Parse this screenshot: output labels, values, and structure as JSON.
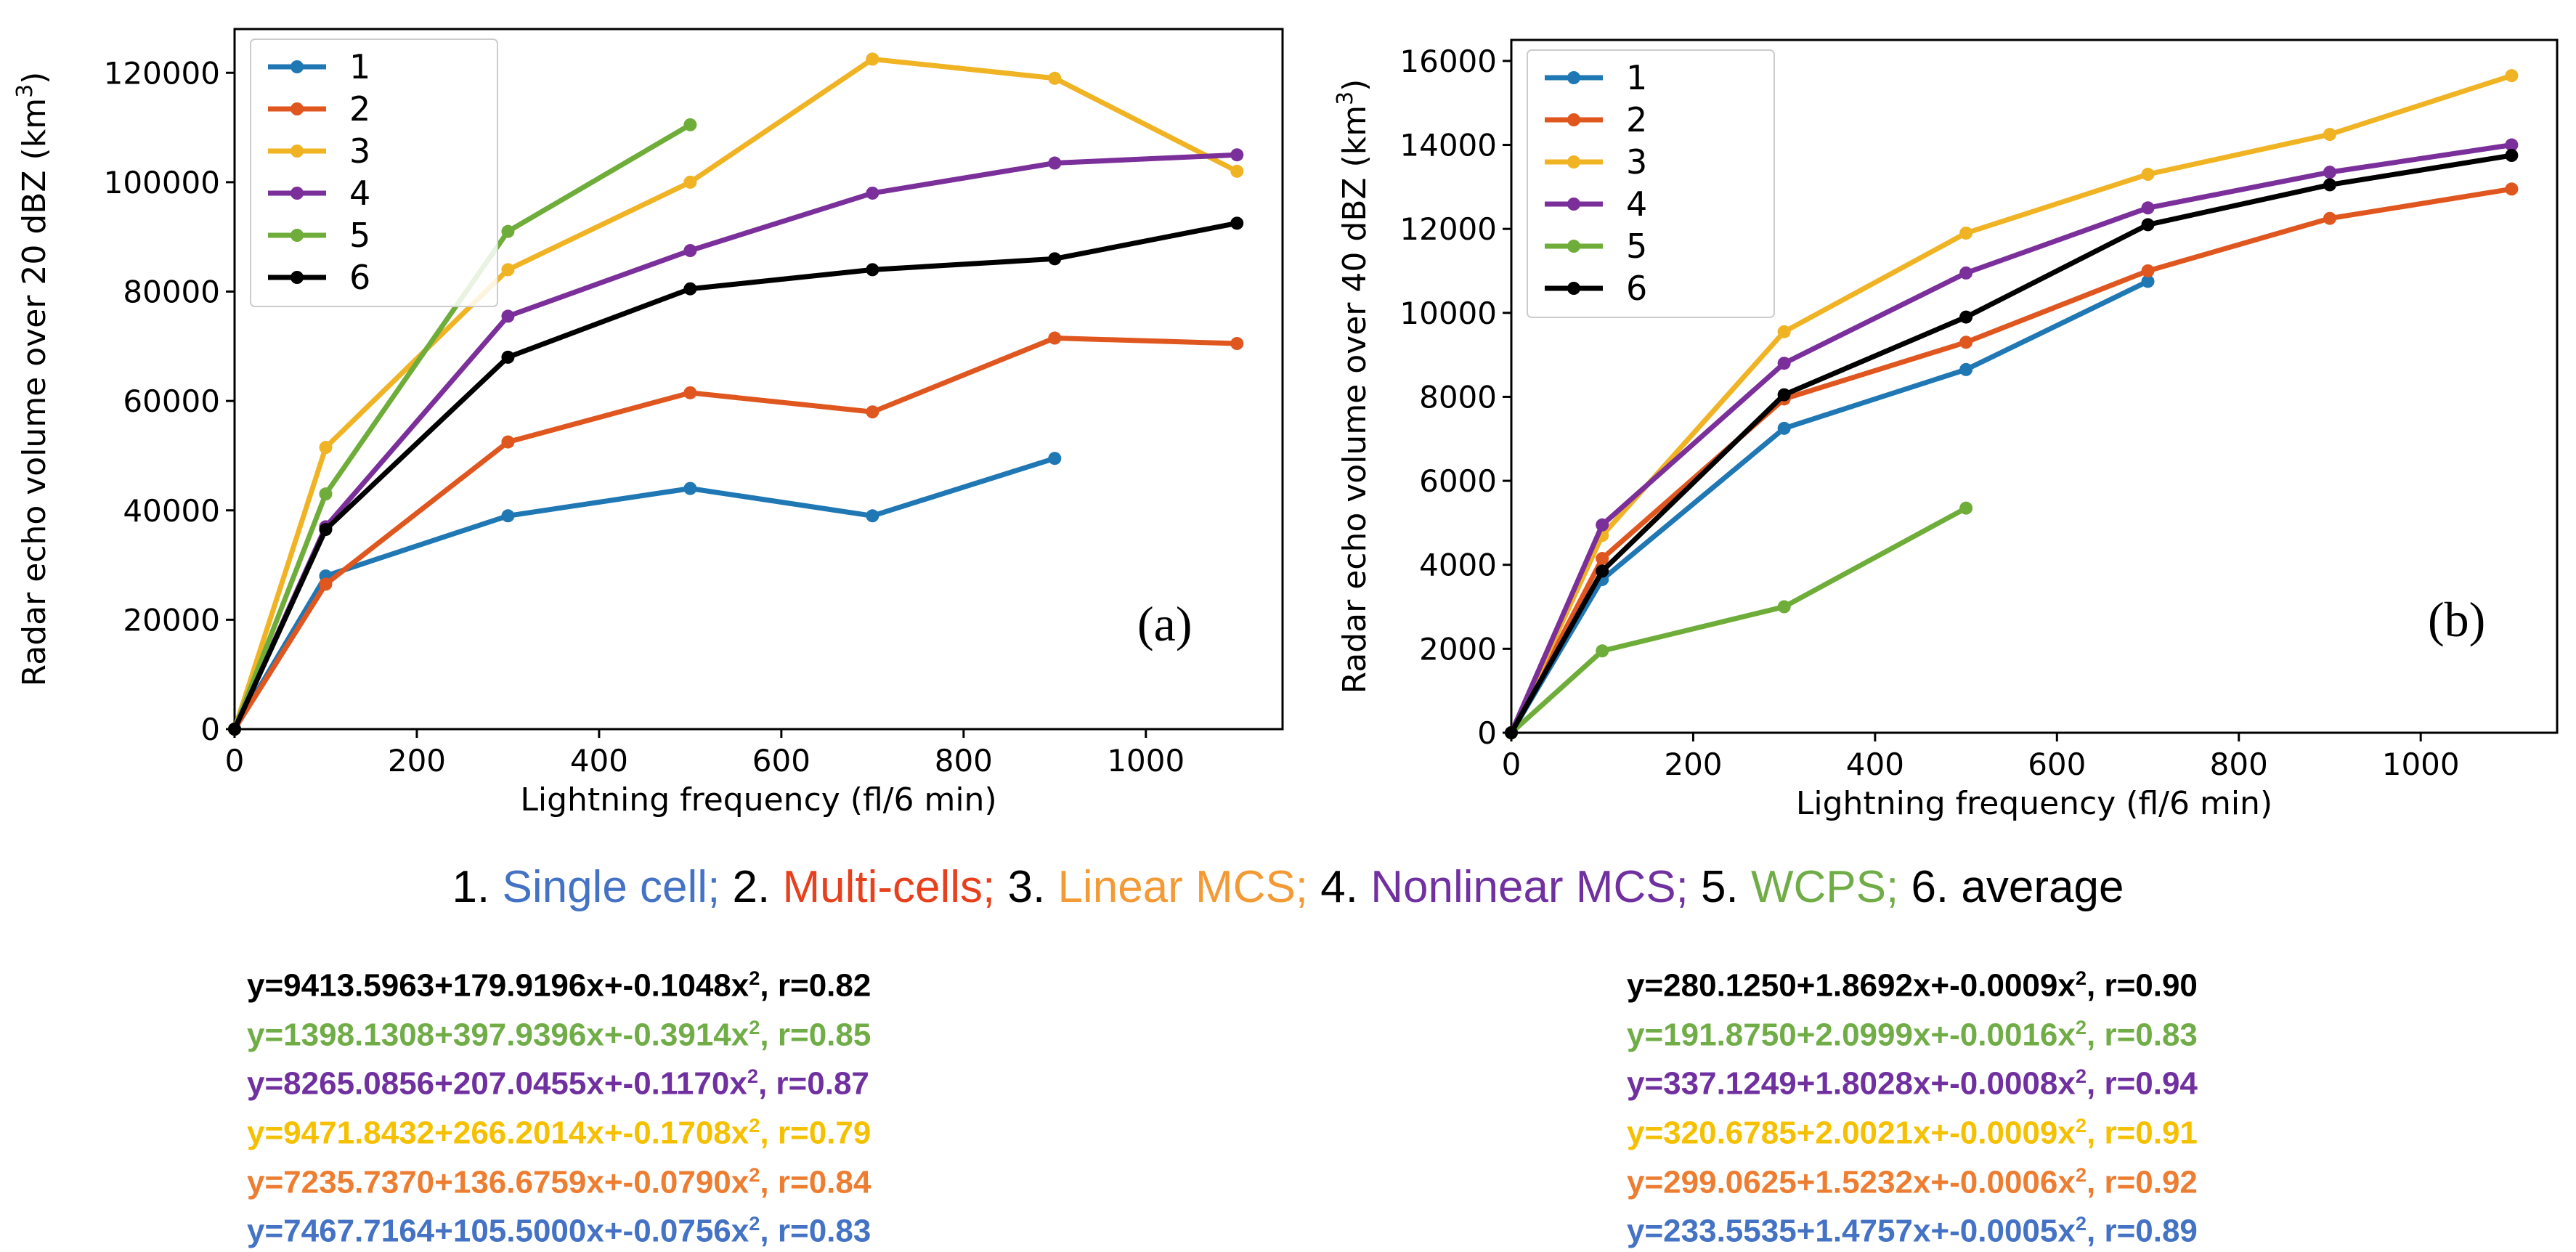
{
  "colors": {
    "1": "#1f77b4",
    "2": "#e0561f",
    "3": "#f0b323",
    "4": "#7b2f9a",
    "5": "#6fad3a",
    "6": "#000000",
    "cap1": "#4472c4",
    "cap2": "#e8401c",
    "cap3": "#f39a35",
    "cap4": "#7030a0",
    "cap5": "#70ad47",
    "cap6": "#000000"
  },
  "chart_data": [
    {
      "type": "line",
      "panel_label": "(a)",
      "xlabel": "Lightning frequency (fl/6 min)",
      "ylabel": "Radar echo volume over 20 dBZ (km",
      "ylabel_sup": "3",
      "ylabel_close": ")",
      "xlim": [
        0,
        1150
      ],
      "ylim": [
        0,
        128000
      ],
      "xticks": [
        0,
        200,
        400,
        600,
        800,
        1000
      ],
      "yticks": [
        0,
        20000,
        40000,
        60000,
        80000,
        100000,
        120000
      ],
      "legend_position": "top-left",
      "series": [
        {
          "name": "1",
          "color_key": "1",
          "x": [
            0,
            100,
            300,
            500,
            700,
            900
          ],
          "y": [
            0,
            28000,
            39000,
            44000,
            39000,
            49500
          ]
        },
        {
          "name": "2",
          "color_key": "2",
          "x": [
            0,
            100,
            300,
            500,
            700,
            900,
            1100
          ],
          "y": [
            0,
            26500,
            52500,
            61500,
            58000,
            71500,
            70500
          ]
        },
        {
          "name": "3",
          "color_key": "3",
          "x": [
            0,
            100,
            300,
            500,
            700,
            900,
            1100
          ],
          "y": [
            0,
            51500,
            84000,
            100000,
            122500,
            119000,
            102000
          ]
        },
        {
          "name": "4",
          "color_key": "4",
          "x": [
            0,
            100,
            300,
            500,
            700,
            900,
            1100
          ],
          "y": [
            0,
            37000,
            75500,
            87500,
            98000,
            103500,
            105000
          ]
        },
        {
          "name": "5",
          "color_key": "5",
          "x": [
            0,
            100,
            300,
            500
          ],
          "y": [
            0,
            43000,
            91000,
            110500
          ]
        },
        {
          "name": "6",
          "color_key": "6",
          "x": [
            0,
            100,
            300,
            500,
            700,
            900,
            1100
          ],
          "y": [
            0,
            36500,
            68000,
            80500,
            84000,
            86000,
            92500
          ]
        }
      ]
    },
    {
      "type": "line",
      "panel_label": "(b)",
      "xlabel": "Lightning frequency (fl/6 min)",
      "ylabel": "Radar echo volume over 40 dBZ (km",
      "ylabel_sup": "3",
      "ylabel_close": ")",
      "xlim": [
        0,
        1150
      ],
      "ylim": [
        0,
        16500
      ],
      "xticks": [
        0,
        200,
        400,
        600,
        800,
        1000
      ],
      "yticks": [
        0,
        2000,
        4000,
        6000,
        8000,
        10000,
        12000,
        14000,
        16000
      ],
      "legend_position": "top-left",
      "series": [
        {
          "name": "1",
          "color_key": "1",
          "x": [
            0,
            100,
            300,
            500,
            700
          ],
          "y": [
            0,
            3650,
            7250,
            8650,
            10750
          ]
        },
        {
          "name": "2",
          "color_key": "2",
          "x": [
            0,
            100,
            300,
            500,
            700,
            900,
            1100
          ],
          "y": [
            0,
            4150,
            7950,
            9300,
            11000,
            12250,
            12950
          ]
        },
        {
          "name": "3",
          "color_key": "3",
          "x": [
            0,
            100,
            300,
            500,
            700,
            900,
            1100
          ],
          "y": [
            0,
            4700,
            9550,
            11900,
            13300,
            14250,
            15650
          ]
        },
        {
          "name": "4",
          "color_key": "4",
          "x": [
            0,
            100,
            300,
            500,
            700,
            900,
            1100
          ],
          "y": [
            0,
            4950,
            8800,
            10950,
            12500,
            13350,
            14000
          ]
        },
        {
          "name": "5",
          "color_key": "5",
          "x": [
            0,
            100,
            300,
            500
          ],
          "y": [
            0,
            1950,
            3000,
            5350
          ]
        },
        {
          "name": "6",
          "color_key": "6",
          "x": [
            0,
            100,
            300,
            500,
            700,
            900,
            1100
          ],
          "y": [
            0,
            3850,
            8050,
            9900,
            12100,
            13050,
            13750
          ]
        }
      ]
    }
  ],
  "caption": [
    {
      "num": "1. ",
      "label": "Single cell;",
      "color_key": "cap1"
    },
    {
      "num": " 2. ",
      "label": "Multi-cells;",
      "color_key": "cap2"
    },
    {
      "num": " 3. ",
      "label": "Linear MCS;",
      "color_key": "cap3"
    },
    {
      "num": " 4. ",
      "label": "Nonlinear MCS;",
      "color_key": "cap4"
    },
    {
      "num": " 5. ",
      "label": "WCPS;",
      "color_key": "cap5"
    },
    {
      "num": " 6. ",
      "label": "average",
      "color_key": "cap6"
    }
  ],
  "equations_left": [
    {
      "pre": "y=9413.5963+179.9196x+-0.1048x",
      "sup": "2",
      "post": ", r=0.82",
      "color": "#000000"
    },
    {
      "pre": "y=1398.1308+397.9396x+-0.3914x",
      "sup": "2",
      "post": ", r=0.85",
      "color": "#70ad47"
    },
    {
      "pre": "y=8265.0856+207.0455x+-0.1170x",
      "sup": "2",
      "post": ", r=0.87",
      "color": "#7030a0"
    },
    {
      "pre": "y=9471.8432+266.2014x+-0.1708x",
      "sup": "2",
      "post": ", r=0.79",
      "color": "#f5c000"
    },
    {
      "pre": "y=7235.7370+136.6759x+-0.0790x",
      "sup": "2",
      "post": ", r=0.84",
      "color": "#ed7d31"
    },
    {
      "pre": "y=7467.7164+105.5000x+-0.0756x",
      "sup": "2",
      "post": ", r=0.83",
      "color": "#4472c4"
    }
  ],
  "equations_right": [
    {
      "pre": "y=280.1250+1.8692x+-0.0009x",
      "sup": "2",
      "post": ", r=0.90",
      "color": "#000000"
    },
    {
      "pre": "y=191.8750+2.0999x+-0.0016x",
      "sup": "2",
      "post": ", r=0.83",
      "color": "#70ad47"
    },
    {
      "pre": "y=337.1249+1.8028x+-0.0008x",
      "sup": "2",
      "post": ", r=0.94",
      "color": "#7030a0"
    },
    {
      "pre": "y=320.6785+2.0021x+-0.0009x",
      "sup": "2",
      "post": ", r=0.91",
      "color": "#f5c000"
    },
    {
      "pre": "y=299.0625+1.5232x+-0.0006x",
      "sup": "2",
      "post": ", r=0.92",
      "color": "#ed7d31"
    },
    {
      "pre": "y=233.5535+1.4757x+-0.0005x",
      "sup": "2",
      "post": ", r=0.89",
      "color": "#4472c4"
    }
  ]
}
